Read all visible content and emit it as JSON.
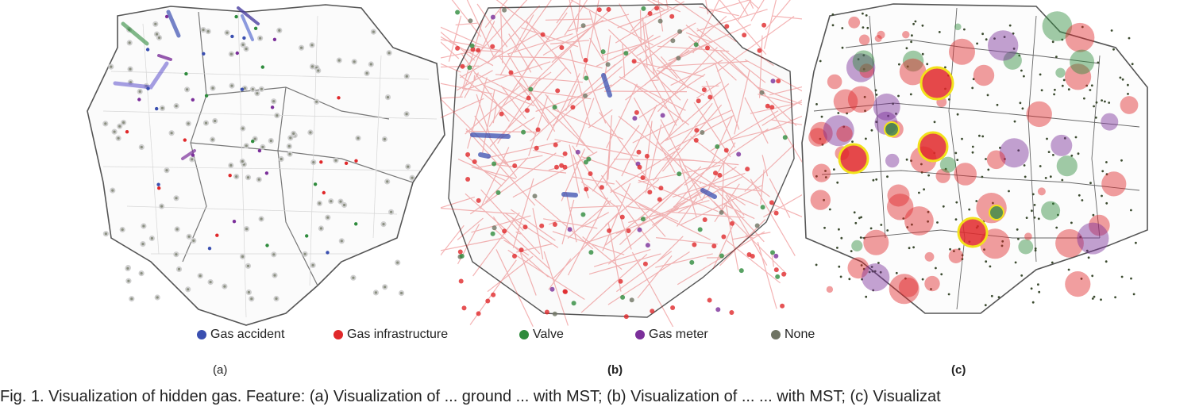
{
  "legend": [
    {
      "label": "Gas accident",
      "color": "#3a4fb0"
    },
    {
      "label": "Gas infrastructure",
      "color": "#e0282a"
    },
    {
      "label": "Valve",
      "color": "#2e8b3c"
    },
    {
      "label": "Gas meter",
      "color": "#7b2f9a"
    },
    {
      "label": "None",
      "color": "#6f7463"
    }
  ],
  "panels": [
    {
      "label": "(a)"
    },
    {
      "label": "(b)"
    },
    {
      "label": "(c)"
    }
  ],
  "caption": "Fig. 1. Visualization of hidden gas. Feature: (a) Visualization of ... ground ... with MST; (b) Visualization of ... ... with MST; (c) Visualizat"
}
